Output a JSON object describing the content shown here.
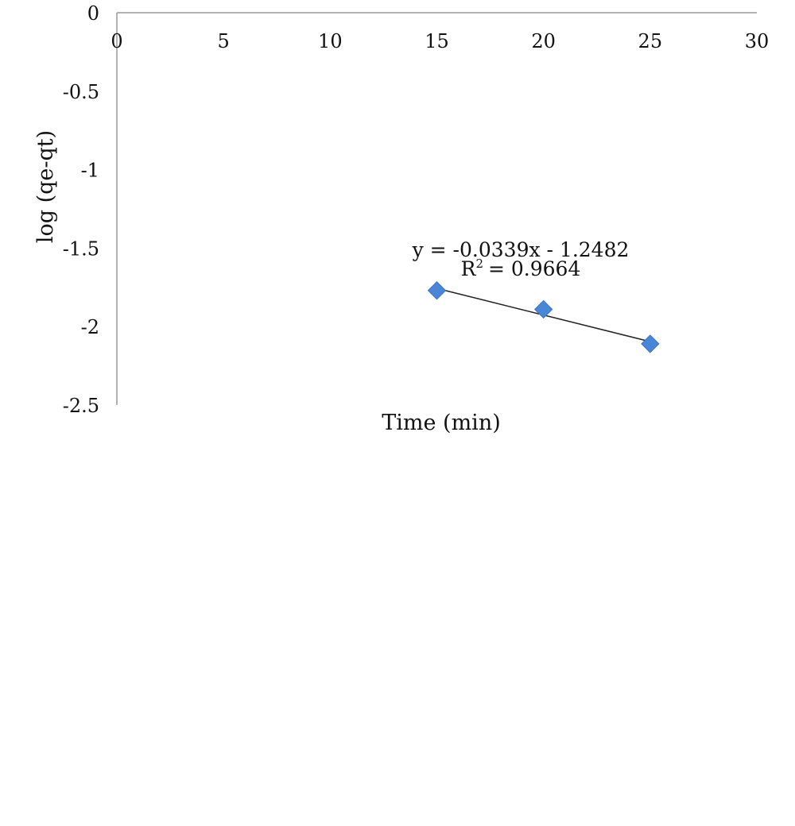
{
  "chart_data": {
    "type": "scatter",
    "xlabel": "Time (min)",
    "ylabel": "log (qe-qt)",
    "xlim": [
      0,
      30
    ],
    "ylim": [
      -2.5,
      0
    ],
    "x_ticks": [
      "0",
      "5",
      "10",
      "15",
      "20",
      "25",
      "30"
    ],
    "y_ticks": [
      "0",
      "-0.5",
      "-1",
      "-1.5",
      "-2",
      "-2.5"
    ],
    "x_axis_position": "top",
    "grid": false,
    "legend": "none",
    "series": [
      {
        "marker": "diamond",
        "color": "#4a86d8",
        "points": [
          {
            "x": 15,
            "y": -1.77
          },
          {
            "x": 20,
            "y": -1.89
          },
          {
            "x": 25,
            "y": -2.11
          }
        ]
      }
    ],
    "trendline": {
      "type": "linear",
      "slope": -0.0339,
      "intercept": -1.2482,
      "x_range": [
        15,
        25
      ],
      "equation": "y = -0.0339x - 1.2482",
      "r2_prefix": "R",
      "r2_superscript": "2",
      "r2_value": "= 0.9664"
    }
  }
}
